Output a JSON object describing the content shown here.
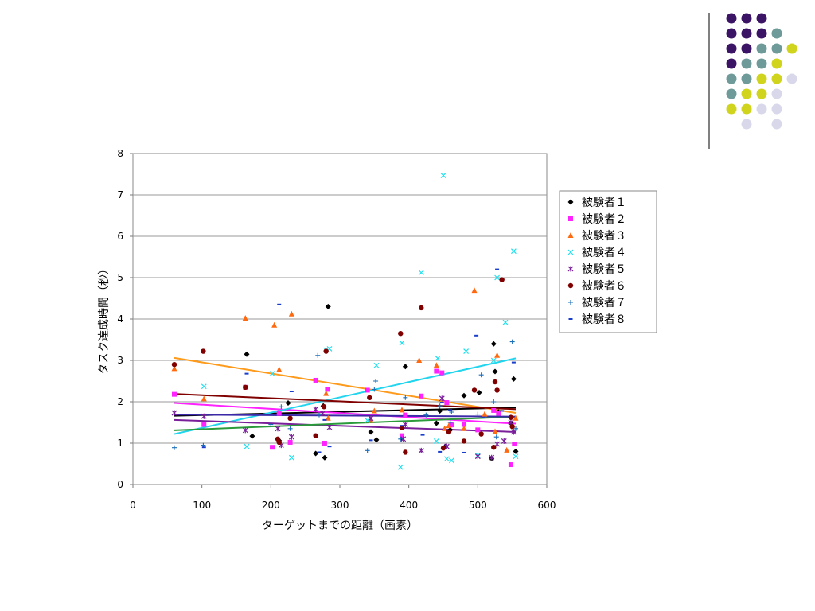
{
  "decoration": {
    "dot_colors": {
      "purple": "#3c1466",
      "teal": "#6e9a9a",
      "yellow": "#d0d41c",
      "lavender": "#d8d8ea"
    },
    "divider_color": "#000000"
  },
  "chart_data": {
    "type": "scatter",
    "xlabel": "ターゲットまでの距離（画素）",
    "ylabel": "タスク達成時間（秒）",
    "xlim": [
      0,
      600
    ],
    "ylim": [
      0,
      8
    ],
    "xticks": [
      0,
      100,
      200,
      300,
      400,
      500,
      600
    ],
    "yticks": [
      0,
      1,
      2,
      3,
      4,
      5,
      6,
      7,
      8
    ],
    "grid": "horizontal",
    "legend_position": "right",
    "series": [
      {
        "name": "被験者１",
        "color": "#000000",
        "marker": "diamond",
        "trendline": {
          "x": [
            60,
            555
          ],
          "y": [
            1.66,
            1.86
          ],
          "color": "#000000"
        },
        "points": [
          [
            165,
            3.15
          ],
          [
            173,
            1.17
          ],
          [
            212,
            1.06
          ],
          [
            225,
            1.97
          ],
          [
            265,
            0.75
          ],
          [
            276,
            1.9
          ],
          [
            278,
            0.65
          ],
          [
            283,
            4.3
          ],
          [
            345,
            1.27
          ],
          [
            353,
            1.08
          ],
          [
            390,
            1.12
          ],
          [
            395,
            2.85
          ],
          [
            440,
            1.48
          ],
          [
            445,
            1.78
          ],
          [
            453,
            0.92
          ],
          [
            460,
            1.32
          ],
          [
            480,
            2.15
          ],
          [
            502,
            2.22
          ],
          [
            523,
            3.4
          ],
          [
            525,
            2.73
          ],
          [
            530,
            1.75
          ],
          [
            548,
            1.62
          ],
          [
            552,
            2.55
          ],
          [
            555,
            0.8
          ],
          [
            520,
            0.63
          ],
          [
            548,
            1.48
          ]
        ]
      },
      {
        "name": "被験者２",
        "color": "#ff22ff",
        "marker": "square",
        "trendline": {
          "x": [
            60,
            555
          ],
          "y": [
            1.97,
            1.47
          ],
          "color": "#ff22ff"
        },
        "points": [
          [
            60,
            2.18
          ],
          [
            103,
            1.45
          ],
          [
            163,
            2.35
          ],
          [
            202,
            0.9
          ],
          [
            212,
            1.72
          ],
          [
            228,
            1.02
          ],
          [
            265,
            2.52
          ],
          [
            278,
            1.0
          ],
          [
            282,
            2.3
          ],
          [
            340,
            2.28
          ],
          [
            390,
            1.18
          ],
          [
            395,
            1.68
          ],
          [
            418,
            2.14
          ],
          [
            440,
            2.74
          ],
          [
            448,
            2.7
          ],
          [
            455,
            1.98
          ],
          [
            462,
            1.44
          ],
          [
            480,
            1.45
          ],
          [
            500,
            1.32
          ],
          [
            523,
            1.79
          ],
          [
            530,
            1.72
          ],
          [
            548,
            0.48
          ],
          [
            553,
            0.98
          ]
        ]
      },
      {
        "name": "被験者３",
        "color": "#ff6a10",
        "marker": "triangle",
        "trendline": {
          "x": [
            60,
            555
          ],
          "y": [
            3.06,
            1.73
          ],
          "color": "#ff9a1a"
        },
        "points": [
          [
            60,
            2.8
          ],
          [
            103,
            2.07
          ],
          [
            163,
            4.02
          ],
          [
            205,
            3.85
          ],
          [
            212,
            2.78
          ],
          [
            230,
            4.12
          ],
          [
            280,
            2.2
          ],
          [
            283,
            1.6
          ],
          [
            345,
            1.55
          ],
          [
            350,
            1.78
          ],
          [
            390,
            1.8
          ],
          [
            415,
            3.0
          ],
          [
            440,
            2.88
          ],
          [
            458,
            1.42
          ],
          [
            480,
            1.35
          ],
          [
            495,
            4.69
          ],
          [
            510,
            1.7
          ],
          [
            525,
            1.28
          ],
          [
            528,
            3.12
          ],
          [
            542,
            0.83
          ],
          [
            555,
            1.6
          ],
          [
            452,
            1.35
          ]
        ]
      },
      {
        "name": "被験者４",
        "color": "#22e0ee",
        "marker": "x",
        "trendline": {
          "x": [
            60,
            555
          ],
          "y": [
            1.22,
            3.05
          ],
          "color": "#22d5ee"
        },
        "points": [
          [
            103,
            2.37
          ],
          [
            165,
            0.92
          ],
          [
            202,
            2.68
          ],
          [
            230,
            0.65
          ],
          [
            280,
            3.25
          ],
          [
            285,
            3.28
          ],
          [
            340,
            1.55
          ],
          [
            353,
            2.88
          ],
          [
            388,
            0.42
          ],
          [
            390,
            3.42
          ],
          [
            418,
            5.12
          ],
          [
            442,
            3.05
          ],
          [
            450,
            7.47
          ],
          [
            455,
            0.62
          ],
          [
            462,
            0.58
          ],
          [
            483,
            3.22
          ],
          [
            500,
            0.7
          ],
          [
            523,
            3.0
          ],
          [
            528,
            5.0
          ],
          [
            540,
            3.92
          ],
          [
            552,
            5.64
          ],
          [
            555,
            0.68
          ],
          [
            440,
            1.05
          ]
        ]
      },
      {
        "name": "被験者５",
        "color": "#7a1e9a",
        "marker": "star",
        "trendline": {
          "x": [
            60,
            555
          ],
          "y": [
            1.56,
            1.27
          ],
          "color": "#7a1e9a"
        },
        "points": [
          [
            60,
            1.73
          ],
          [
            103,
            1.65
          ],
          [
            163,
            1.31
          ],
          [
            210,
            1.35
          ],
          [
            215,
            0.95
          ],
          [
            230,
            1.15
          ],
          [
            265,
            1.82
          ],
          [
            275,
            1.72
          ],
          [
            285,
            1.38
          ],
          [
            345,
            1.6
          ],
          [
            392,
            1.1
          ],
          [
            395,
            1.45
          ],
          [
            418,
            0.82
          ],
          [
            448,
            2.08
          ],
          [
            455,
            0.92
          ],
          [
            500,
            0.68
          ],
          [
            520,
            0.65
          ],
          [
            528,
            0.98
          ],
          [
            538,
            1.05
          ],
          [
            548,
            1.5
          ],
          [
            552,
            1.27
          ]
        ]
      },
      {
        "name": "被験者６",
        "color": "#800000",
        "marker": "circle",
        "trendline": {
          "x": [
            60,
            555
          ],
          "y": [
            2.19,
            1.82
          ],
          "color": "#800000"
        },
        "points": [
          [
            60,
            2.9
          ],
          [
            102,
            3.22
          ],
          [
            163,
            2.35
          ],
          [
            210,
            1.1
          ],
          [
            212,
            1.02
          ],
          [
            228,
            1.6
          ],
          [
            265,
            1.18
          ],
          [
            277,
            1.88
          ],
          [
            280,
            3.22
          ],
          [
            343,
            2.1
          ],
          [
            388,
            3.65
          ],
          [
            390,
            1.37
          ],
          [
            395,
            0.78
          ],
          [
            418,
            4.27
          ],
          [
            450,
            0.88
          ],
          [
            458,
            1.27
          ],
          [
            480,
            1.05
          ],
          [
            495,
            2.28
          ],
          [
            505,
            1.22
          ],
          [
            523,
            0.9
          ],
          [
            525,
            2.48
          ],
          [
            528,
            2.28
          ],
          [
            535,
            4.95
          ],
          [
            550,
            1.4
          ],
          [
            548,
            1.62
          ]
        ]
      },
      {
        "name": "被験者７",
        "color": "#1a6eb8",
        "marker": "plus",
        "trendline": {
          "x": [
            60,
            555
          ],
          "y": [
            1.31,
            1.64
          ],
          "color": "#2a9a3a"
        },
        "points": [
          [
            60,
            0.89
          ],
          [
            102,
            0.95
          ],
          [
            200,
            1.45
          ],
          [
            215,
            1.88
          ],
          [
            228,
            1.35
          ],
          [
            268,
            3.12
          ],
          [
            270,
            1.68
          ],
          [
            340,
            0.82
          ],
          [
            350,
            2.3
          ],
          [
            352,
            2.5
          ],
          [
            388,
            1.1
          ],
          [
            395,
            2.1
          ],
          [
            425,
            1.68
          ],
          [
            445,
            1.9
          ],
          [
            462,
            1.75
          ],
          [
            500,
            1.7
          ],
          [
            505,
            2.65
          ],
          [
            523,
            2.0
          ],
          [
            527,
            1.15
          ],
          [
            550,
            3.45
          ],
          [
            555,
            1.35
          ],
          [
            460,
            1.5
          ]
        ]
      },
      {
        "name": "被験者８",
        "color": "#1a3ecc",
        "marker": "dash",
        "trendline": {
          "x": [
            60,
            555
          ],
          "y": [
            1.69,
            1.64
          ],
          "color": "#3a2aa8"
        },
        "points": [
          [
            103,
            0.9
          ],
          [
            165,
            2.68
          ],
          [
            212,
            4.35
          ],
          [
            230,
            2.25
          ],
          [
            270,
            0.78
          ],
          [
            278,
            1.56
          ],
          [
            285,
            0.92
          ],
          [
            345,
            1.07
          ],
          [
            390,
            1.42
          ],
          [
            420,
            1.2
          ],
          [
            445,
            0.79
          ],
          [
            448,
            1.98
          ],
          [
            460,
            1.8
          ],
          [
            480,
            0.77
          ],
          [
            498,
            3.6
          ],
          [
            508,
            1.62
          ],
          [
            528,
            5.2
          ],
          [
            535,
            1.78
          ],
          [
            552,
            2.95
          ]
        ]
      }
    ]
  }
}
